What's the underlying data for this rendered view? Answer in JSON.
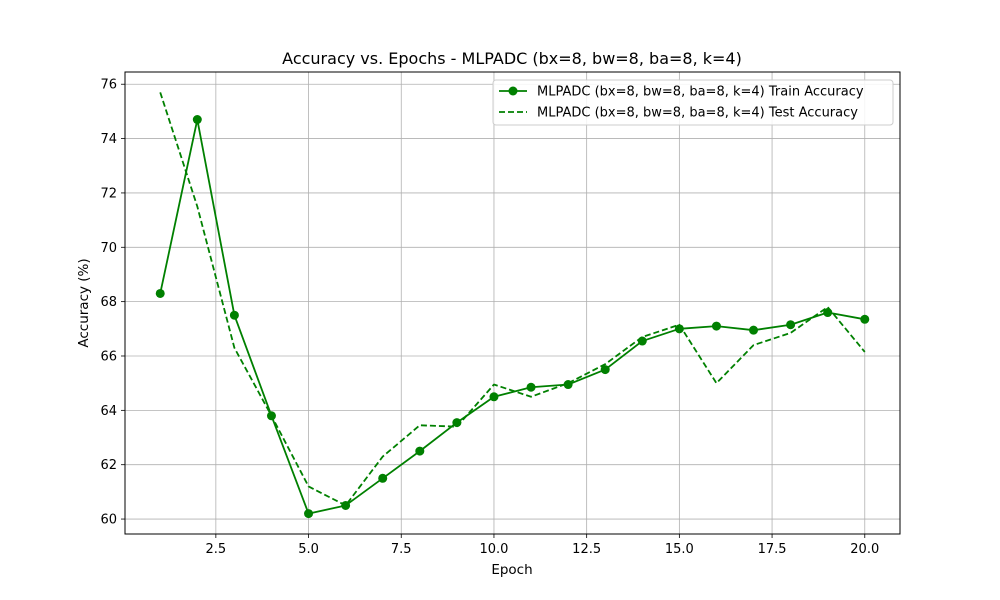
{
  "chart_data": {
    "type": "line",
    "title": "Accuracy vs. Epochs - MLPADC (bx=8, bw=8, ba=8, k=4)",
    "xlabel": "Epoch",
    "ylabel": "Accuracy (%)",
    "xlim": [
      0.05,
      20.95
    ],
    "ylim": [
      59.45,
      76.45
    ],
    "xticks": [
      2.5,
      5.0,
      7.5,
      10.0,
      12.5,
      15.0,
      17.5,
      20.0
    ],
    "xtick_labels": [
      "2.5",
      "5.0",
      "7.5",
      "10.0",
      "12.5",
      "15.0",
      "17.5",
      "20.0"
    ],
    "yticks": [
      60,
      62,
      64,
      66,
      68,
      70,
      72,
      74,
      76
    ],
    "ytick_labels": [
      "60",
      "62",
      "64",
      "66",
      "68",
      "70",
      "72",
      "74",
      "76"
    ],
    "grid": true,
    "legend_position": "top-right",
    "x": [
      1,
      2,
      3,
      4,
      5,
      6,
      7,
      8,
      9,
      10,
      11,
      12,
      13,
      14,
      15,
      16,
      17,
      18,
      19,
      20
    ],
    "series": [
      {
        "name": "MLPADC (bx=8, bw=8, ba=8, k=4) Train Accuracy",
        "color": "#008000",
        "style": "solid",
        "marker": "circle",
        "values": [
          68.3,
          74.7,
          67.5,
          63.8,
          60.2,
          60.5,
          61.5,
          62.5,
          63.55,
          64.5,
          64.85,
          64.95,
          65.5,
          66.55,
          67.0,
          67.1,
          66.95,
          67.15,
          67.6,
          67.35
        ]
      },
      {
        "name": "MLPADC (bx=8, bw=8, ba=8, k=4) Test Accuracy",
        "color": "#008000",
        "style": "dashed",
        "marker": "none",
        "values": [
          75.7,
          71.5,
          66.3,
          63.8,
          61.2,
          60.5,
          62.3,
          63.45,
          63.4,
          64.95,
          64.5,
          65.0,
          65.7,
          66.7,
          67.15,
          65.0,
          66.4,
          66.85,
          67.8,
          66.15
        ]
      }
    ]
  }
}
